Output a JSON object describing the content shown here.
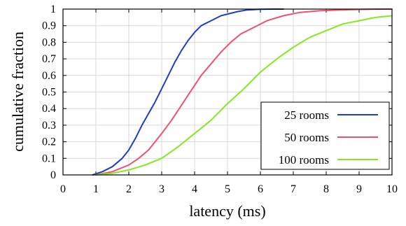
{
  "chart_data": {
    "type": "line",
    "xlabel": "latency (ms)",
    "ylabel": "cumulative fraction",
    "xlim": [
      0,
      10
    ],
    "ylim": [
      0,
      1
    ],
    "xticks": [
      "0",
      "1",
      "2",
      "3",
      "4",
      "5",
      "6",
      "7",
      "8",
      "9",
      "10"
    ],
    "yticks": [
      "0",
      "0.1",
      "0.2",
      "0.3",
      "0.4",
      "0.5",
      "0.6",
      "0.7",
      "0.8",
      "0.9",
      "1"
    ],
    "grid": true,
    "legend_position": "bottom-right",
    "series": [
      {
        "name": "25 rooms",
        "color": "#1f3fbf",
        "x": [
          0.9,
          1.2,
          1.5,
          1.8,
          2.0,
          2.2,
          2.4,
          2.6,
          2.8,
          3.0,
          3.2,
          3.4,
          3.6,
          3.8,
          4.0,
          4.2,
          4.5,
          4.8,
          5.0,
          5.3,
          5.6,
          6.0,
          6.4,
          6.7
        ],
        "y": [
          0.0,
          0.02,
          0.05,
          0.1,
          0.15,
          0.22,
          0.3,
          0.37,
          0.44,
          0.52,
          0.6,
          0.68,
          0.75,
          0.81,
          0.86,
          0.9,
          0.93,
          0.96,
          0.97,
          0.985,
          0.995,
          0.999,
          1.0,
          1.0
        ]
      },
      {
        "name": "50 rooms",
        "color": "#f0506e",
        "x": [
          1.0,
          1.5,
          2.0,
          2.3,
          2.6,
          2.8,
          3.0,
          3.3,
          3.6,
          3.9,
          4.2,
          4.5,
          4.8,
          5.1,
          5.4,
          5.8,
          6.2,
          6.7,
          7.2,
          7.8,
          8.4,
          9.0,
          9.6,
          10.0
        ],
        "y": [
          0.0,
          0.02,
          0.06,
          0.1,
          0.15,
          0.2,
          0.25,
          0.33,
          0.42,
          0.51,
          0.6,
          0.67,
          0.74,
          0.8,
          0.85,
          0.89,
          0.93,
          0.96,
          0.98,
          0.99,
          0.995,
          0.998,
          1.0,
          1.0
        ]
      },
      {
        "name": "100 rooms",
        "color": "#86e81f",
        "x": [
          1.0,
          1.5,
          2.0,
          2.5,
          3.0,
          3.5,
          4.0,
          4.5,
          5.0,
          5.5,
          6.0,
          6.5,
          7.0,
          7.5,
          8.0,
          8.5,
          9.0,
          9.5,
          10.0
        ],
        "y": [
          0.0,
          0.01,
          0.03,
          0.06,
          0.1,
          0.17,
          0.25,
          0.33,
          0.43,
          0.52,
          0.62,
          0.7,
          0.77,
          0.83,
          0.87,
          0.91,
          0.93,
          0.95,
          0.96
        ]
      }
    ]
  }
}
